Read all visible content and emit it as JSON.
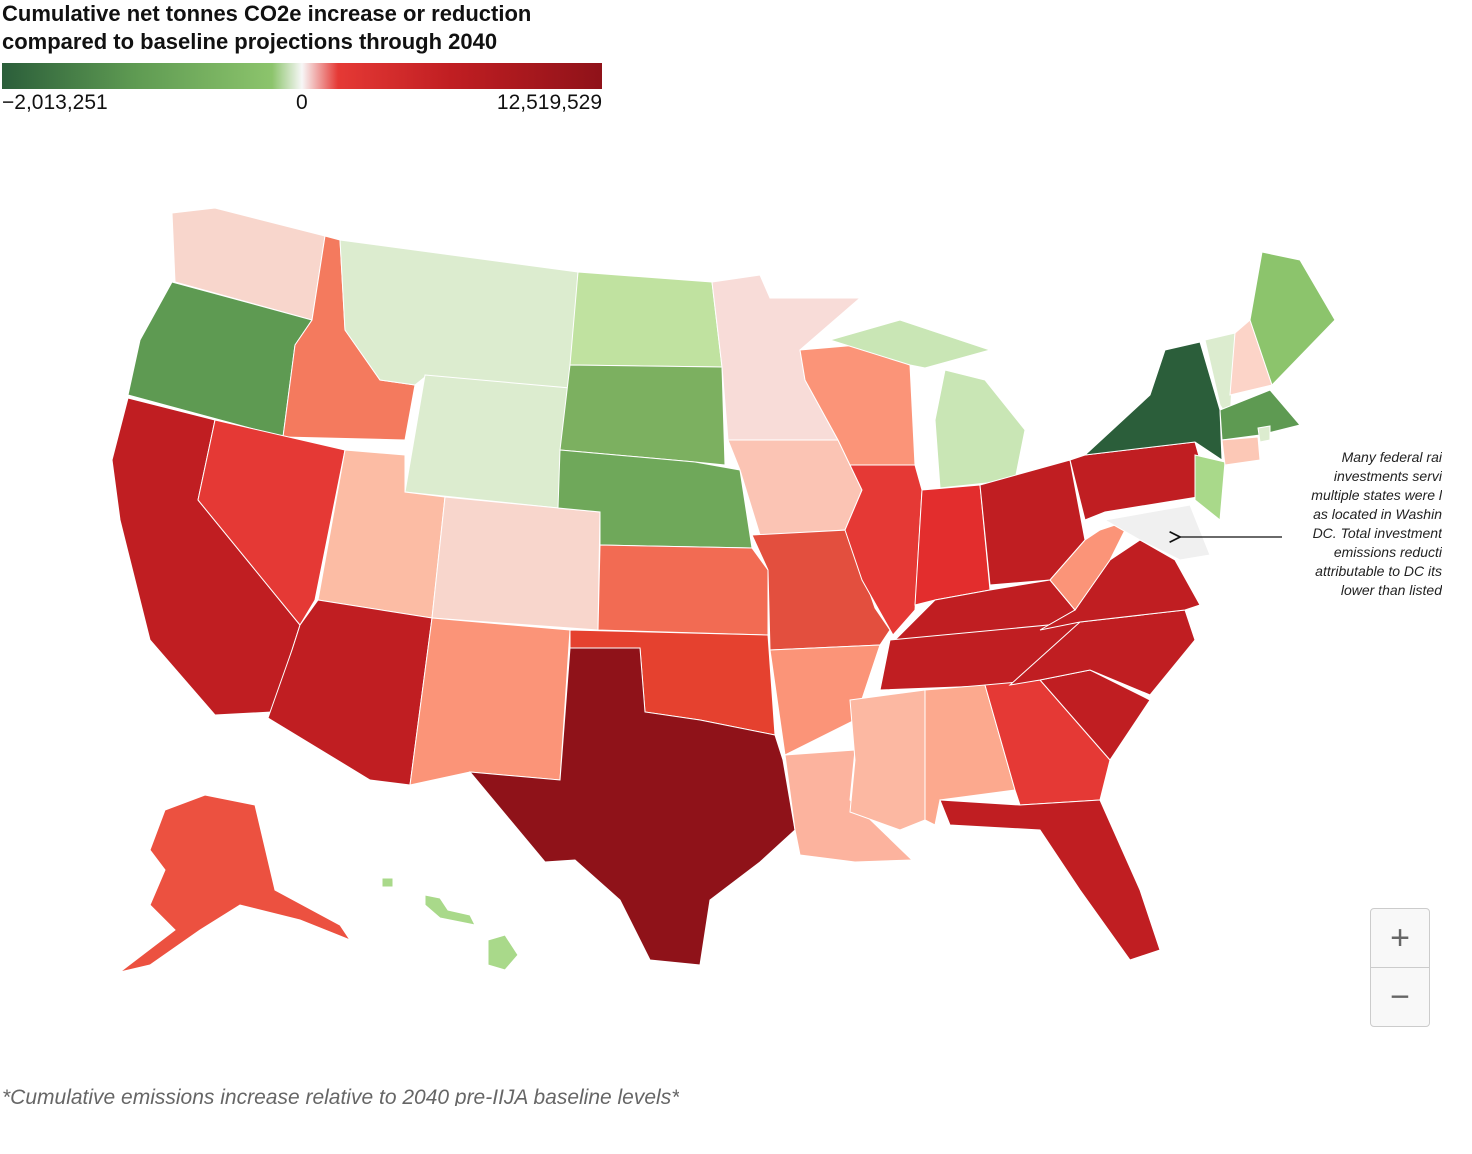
{
  "title": [
    "Cumulative net tonnes CO2e increase or reduction",
    "compared to baseline projections through 2040"
  ],
  "legend": {
    "min": {
      "value": -2013251,
      "label": "−2,013,251"
    },
    "mid": 0,
    "max": {
      "value": 12519529,
      "label": "12,519,529"
    },
    "colors": [
      "#2b5e3a",
      "#5e9a52",
      "#8cc46c",
      "#f7f7f7",
      "#e53935",
      "#c01e22",
      "#8f1219"
    ]
  },
  "annotation": [
    "Many federal rai",
    "investments servi",
    "multiple states were l",
    "as located in Washin",
    "DC. Total investment",
    "emissions reducti",
    "attributable to DC its",
    "lower than listed"
  ],
  "regions": [
    {
      "color": "#f8d6cc"
    },
    {
      "color": "#5e9a52"
    },
    {
      "color": "#c01e22"
    },
    {
      "color": "#f47a5e"
    },
    {
      "color": "#dceccf"
    },
    {
      "color": "#dceccf"
    },
    {
      "color": "#e53935"
    },
    {
      "color": "#fcbca4"
    },
    {
      "color": "#c01e22"
    },
    {
      "color": "#f8d6cc"
    },
    {
      "color": "#fb9478"
    },
    {
      "color": "#c0e2a0"
    },
    {
      "color": "#7cb060"
    },
    {
      "color": "#6fa85a"
    },
    {
      "color": "#f26b53"
    },
    {
      "color": "#e5412f"
    },
    {
      "color": "#8f1219"
    },
    {
      "color": "#f8dcd8"
    },
    {
      "color": "#fbc4b4"
    },
    {
      "color": "#e34f3e"
    },
    {
      "color": "#fb9478"
    },
    {
      "color": "#fcb39e"
    },
    {
      "color": "#fb9478"
    },
    {
      "color": "#e53935"
    },
    {
      "color": "#c9e6b5"
    },
    {
      "color": "#c9e6b5"
    },
    {
      "color": "#e32d2d"
    },
    {
      "color": "#c01e22"
    },
    {
      "color": "#c01e22"
    },
    {
      "color": "#c01e22"
    },
    {
      "color": "#fcb8a2"
    },
    {
      "color": "#fca98e"
    },
    {
      "color": "#e53935"
    },
    {
      "color": "#c01e22"
    },
    {
      "color": "#c01e22"
    },
    {
      "color": "#c01e22"
    },
    {
      "color": "#c01e22"
    },
    {
      "color": "#fb9478"
    },
    {
      "color": "#c01e22"
    },
    {
      "color": "#2b5e3a"
    },
    {
      "color": "#a9d98a"
    },
    {
      "color": "#f0f0f0"
    },
    {
      "color": "#dceccf"
    },
    {
      "color": "#fcd4c8"
    },
    {
      "color": "#8cc46c"
    },
    {
      "color": "#5e9a52"
    },
    {
      "color": "#fcc8b6"
    },
    {
      "color": "#dceccf"
    },
    {
      "color": "#ec5140"
    },
    {
      "color": "#a9d98a"
    },
    {
      "color": "#a9d98a"
    },
    {
      "color": "#a9d98a"
    }
  ],
  "footnote": "*Cumulative emissions increase relative to 2040 pre-IIJA baseline levels*"
}
